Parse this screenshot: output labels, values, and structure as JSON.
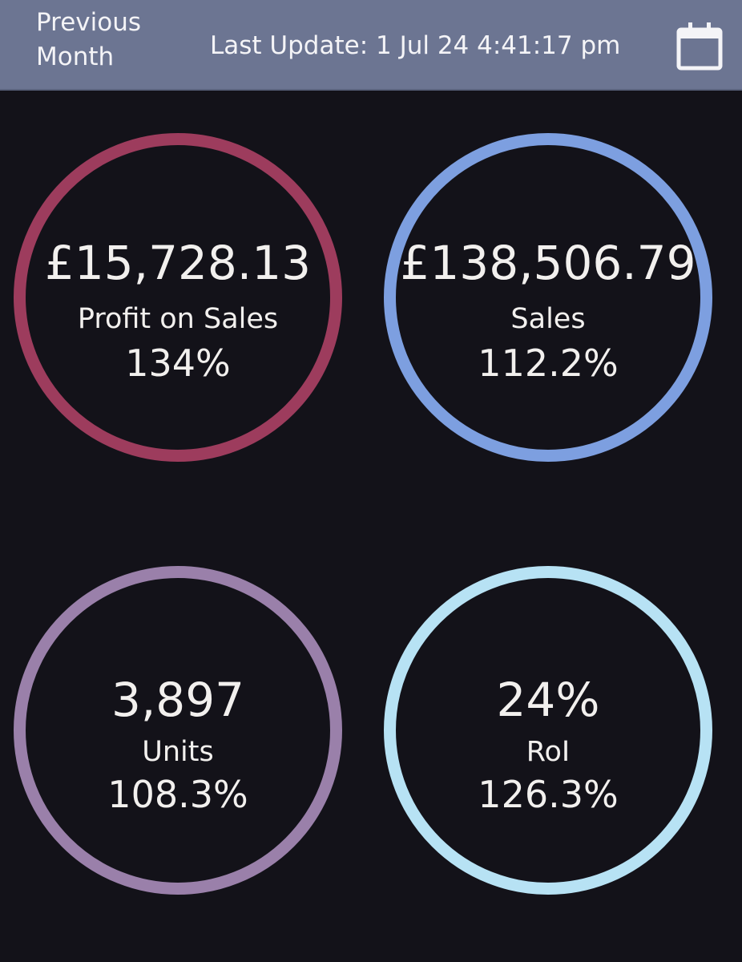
{
  "header": {
    "period_label": "Previous Month",
    "last_update": "Last Update: 1 Jul 24 4:41:17 pm",
    "calendar_icon": "calendar-icon"
  },
  "metrics": [
    {
      "value": "£15,728.13",
      "label": "Profit on Sales",
      "change": "134%",
      "ring_color": "#9d3c5d"
    },
    {
      "value": "£138,506.79",
      "label": "Sales",
      "change": "112.2%",
      "ring_color": "#7d9fe0"
    },
    {
      "value": "3,897",
      "label": "Units",
      "change": "108.3%",
      "ring_color": "#9a80aa"
    },
    {
      "value": "24%",
      "label": "RoI",
      "change": "126.3%",
      "ring_color": "#b7e2f4"
    }
  ],
  "colors": {
    "background": "#131219",
    "header": "#6c7592",
    "text": "#f2f0ee"
  }
}
